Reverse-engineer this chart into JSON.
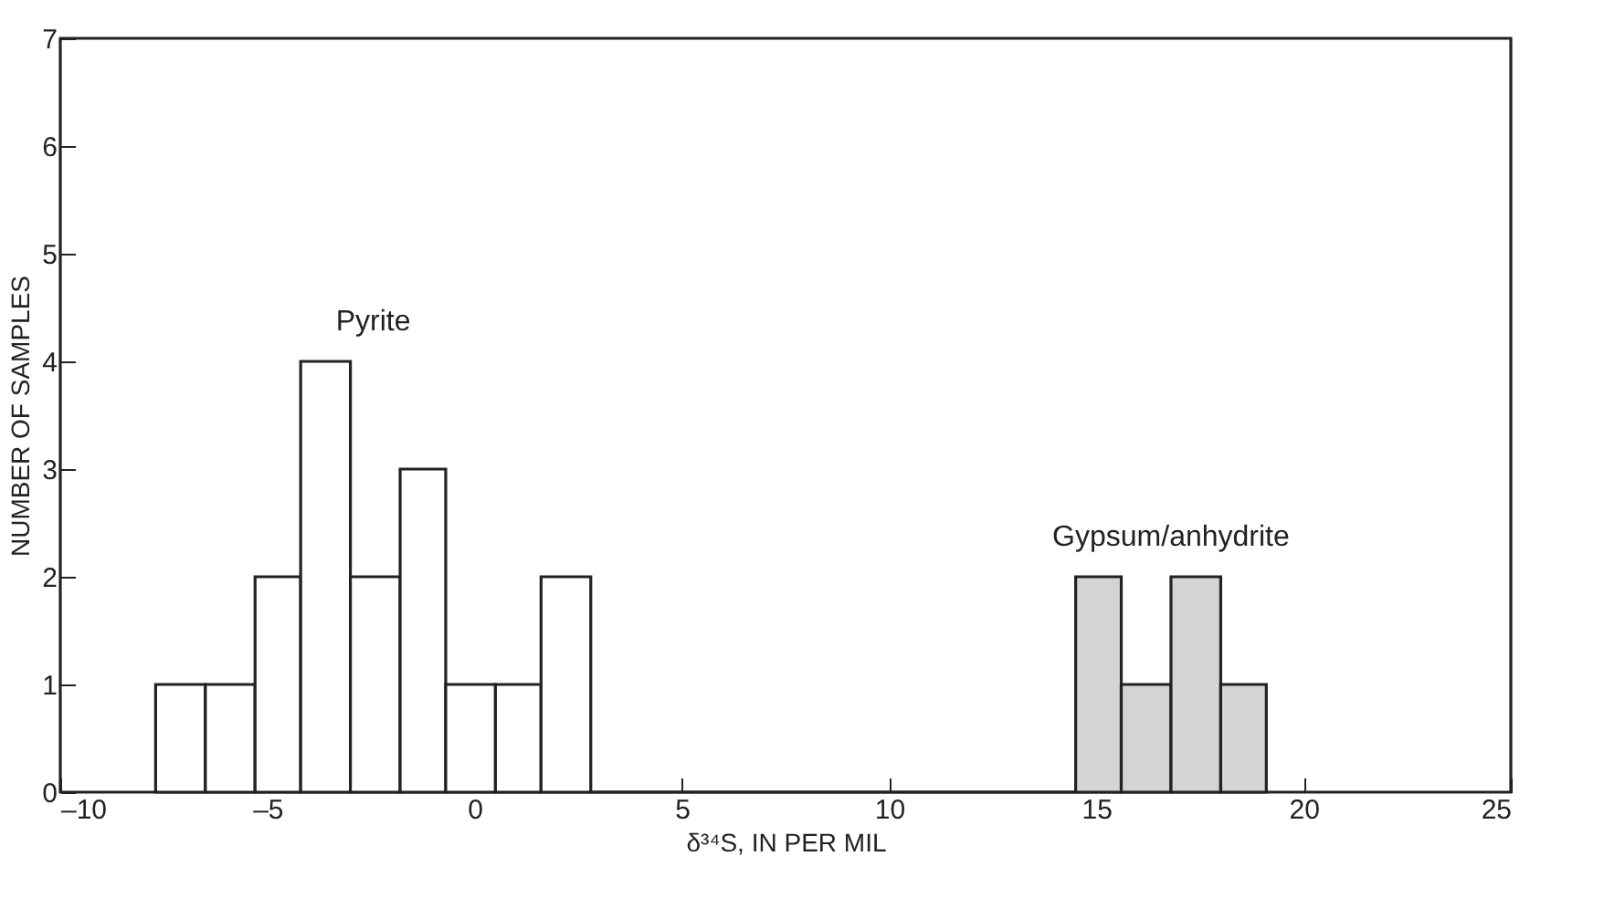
{
  "chart_data": {
    "type": "histogram",
    "xlabel": "δ³⁴S, IN PER MIL",
    "ylabel": "NUMBER OF SAMPLES",
    "bins": [
      -7.7,
      -6.5,
      -5.3,
      -4.2,
      -3.0,
      -1.8,
      -0.7,
      0.5,
      1.6,
      2.8,
      14.5,
      15.6,
      16.8,
      18.0,
      19.1
    ],
    "values": [
      1,
      1,
      2,
      4,
      2,
      3,
      1,
      1,
      2,
      0,
      2,
      1,
      2,
      1
    ],
    "colors": [
      "#ffffff",
      "#ffffff",
      "#ffffff",
      "#ffffff",
      "#ffffff",
      "#ffffff",
      "#ffffff",
      "#ffffff",
      "#ffffff",
      "#ffffff",
      "#d4d4d4",
      "#d4d4d4",
      "#d4d4d4",
      "#d4d4d4"
    ],
    "xlim": [
      -10,
      25
    ],
    "xticks": [
      {
        "value": -10,
        "label": "–10"
      },
      {
        "value": -5,
        "label": "–5"
      },
      0,
      5,
      10,
      15,
      20,
      25
    ],
    "ylim": [
      0,
      7
    ],
    "yticks": [
      0,
      1,
      2,
      3,
      4,
      5,
      6,
      7
    ],
    "grid": false,
    "annotations": [
      "Pyrite",
      "Gypsum/anhydrite"
    ]
  }
}
